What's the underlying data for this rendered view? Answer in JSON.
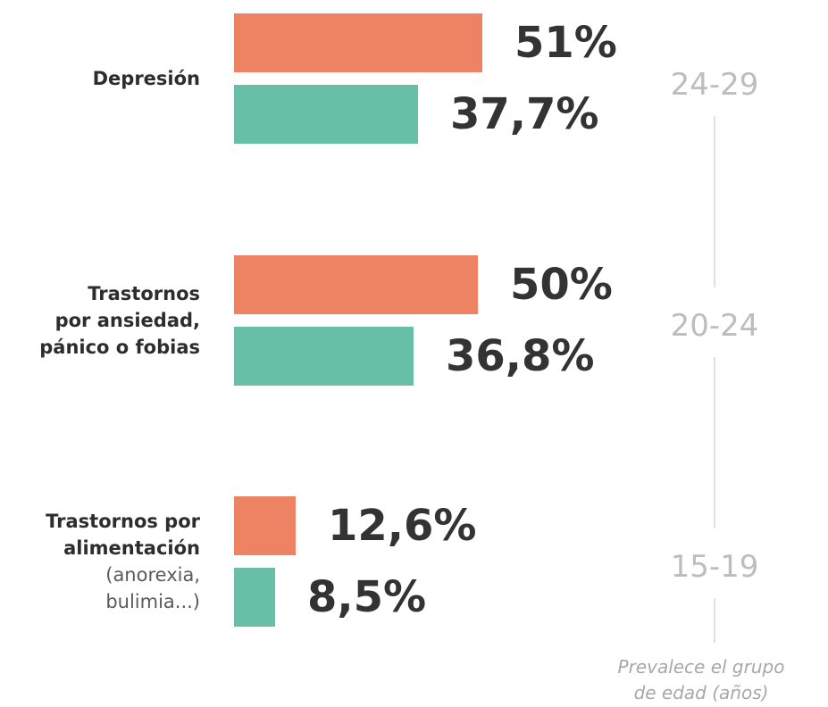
{
  "chart_data": {
    "type": "bar",
    "orientation": "horizontal",
    "title": "",
    "xlabel": "",
    "ylabel": "",
    "xlim": [
      0,
      51
    ],
    "grid": false,
    "legend": null,
    "categories": [
      {
        "lines": [
          "Depresión"
        ],
        "note_lines": []
      },
      {
        "lines": [
          "Trastornos",
          "por ansiedad,",
          "pánico o fobias"
        ],
        "note_lines": []
      },
      {
        "lines": [
          "Trastornos por",
          "alimentación"
        ],
        "note_lines": [
          "(anorexia,",
          "bulimia...)"
        ]
      }
    ],
    "series": [
      {
        "color": "#ee8363",
        "values": [
          51,
          50,
          12.6
        ],
        "labels": [
          "51%",
          "50%",
          "12,6%"
        ]
      },
      {
        "color": "#67bfa7",
        "values": [
          37.7,
          36.8,
          8.5
        ],
        "labels": [
          "37,7%",
          "36,8%",
          "8,5%"
        ]
      }
    ],
    "age_groups": [
      "24-29",
      "20-24",
      "15-19"
    ],
    "age_caption_lines": [
      "Prevalece el grupo",
      "de edad (años)"
    ]
  }
}
